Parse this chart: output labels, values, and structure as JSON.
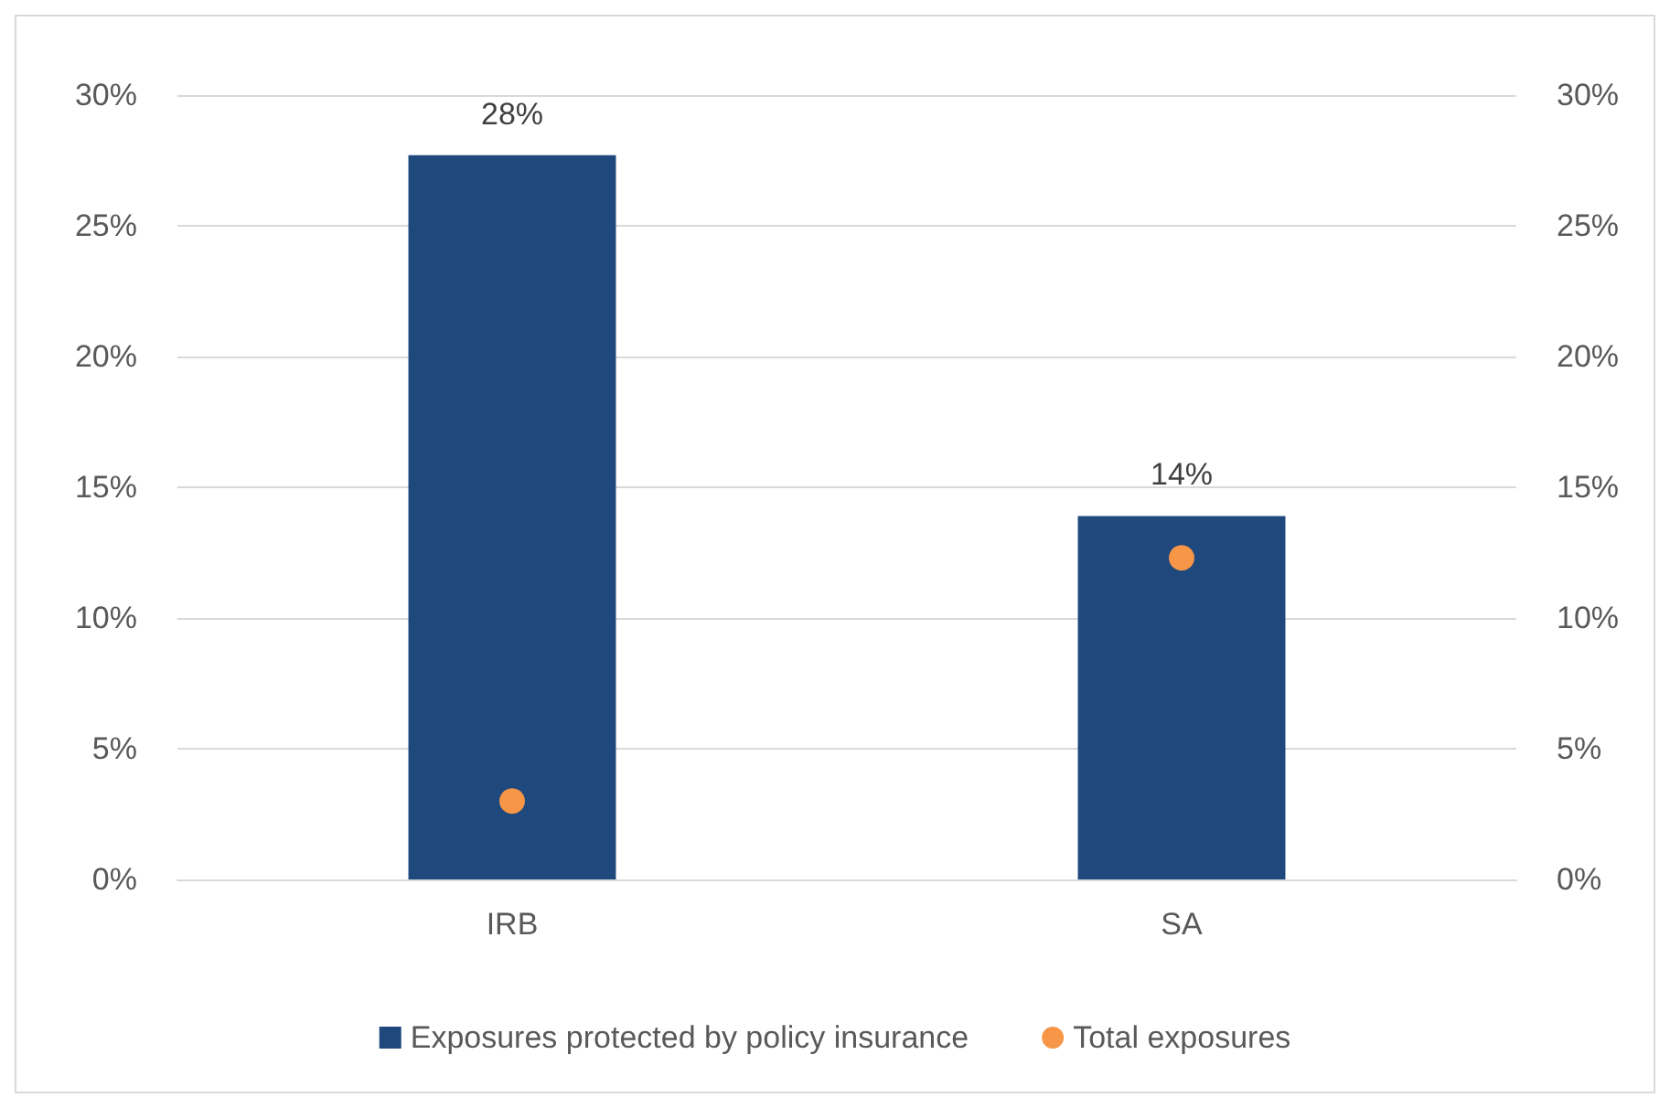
{
  "chart_data": {
    "type": "bar",
    "categories": [
      "IRB",
      "SA"
    ],
    "series": [
      {
        "name": "Exposures protected by policy insurance",
        "color": "#1f497d",
        "values": [
          27.7,
          13.9
        ],
        "value_labels": [
          "28%",
          "14%"
        ]
      },
      {
        "name": "Total exposures",
        "type": "scatter",
        "axis": "y2",
        "color": "#f79646",
        "values": [
          3.0,
          12.3
        ]
      }
    ],
    "ylim": [
      0,
      30
    ],
    "yticks": [
      {
        "value": 0,
        "label": "0%"
      },
      {
        "value": 5,
        "label": "5%"
      },
      {
        "value": 10,
        "label": "10%"
      },
      {
        "value": 15,
        "label": "15%"
      },
      {
        "value": 20,
        "label": "20%"
      },
      {
        "value": 25,
        "label": "25%"
      },
      {
        "value": 30,
        "label": "30%"
      }
    ],
    "y2lim": [
      0,
      30
    ],
    "y2ticks": [
      {
        "value": 0,
        "label": "0%"
      },
      {
        "value": 5,
        "label": "5%"
      },
      {
        "value": 10,
        "label": "10%"
      },
      {
        "value": 15,
        "label": "15%"
      },
      {
        "value": 20,
        "label": "20%"
      },
      {
        "value": 25,
        "label": "25%"
      },
      {
        "value": 30,
        "label": "30%"
      }
    ],
    "grid": "y",
    "legend": "bottom",
    "marker": "circle"
  }
}
